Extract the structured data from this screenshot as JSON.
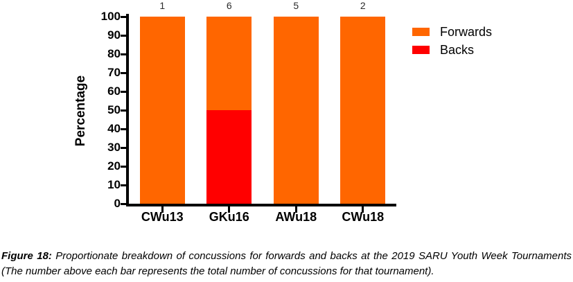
{
  "chart_data": {
    "type": "bar",
    "stacked": true,
    "title": "",
    "categories": [
      "CWu13",
      "GKu16",
      "AWu18",
      "CWu18"
    ],
    "series": [
      {
        "name": "Forwards",
        "color": "#FF6600",
        "values": [
          100,
          50,
          100,
          100
        ]
      },
      {
        "name": "Backs",
        "color": "#FF0000",
        "values": [
          0,
          50,
          0,
          0
        ]
      }
    ],
    "bar_totals": [
      "1",
      "6",
      "5",
      "2"
    ],
    "xlabel": "",
    "ylabel": "Percentage",
    "ylim": [
      0,
      100
    ],
    "yticks": [
      0,
      10,
      20,
      30,
      40,
      50,
      60,
      70,
      80,
      90,
      100
    ],
    "grid": false,
    "legend_position": "top-right"
  },
  "legend": {
    "items": [
      {
        "label": "Forwards",
        "color": "#FF6600"
      },
      {
        "label": "Backs",
        "color": "#FF0000"
      }
    ]
  },
  "caption": {
    "label": "Figure 18:",
    "text": "Proportionate breakdown of concussions for forwards and backs at the 2019 SARU Youth Week Tournaments (The number above each bar represents the total number of concussions for that tournament)."
  },
  "colors": {
    "forwards": "#FF6600",
    "backs": "#FF0000",
    "axis": "#000000",
    "background": "#FFFFFF"
  }
}
